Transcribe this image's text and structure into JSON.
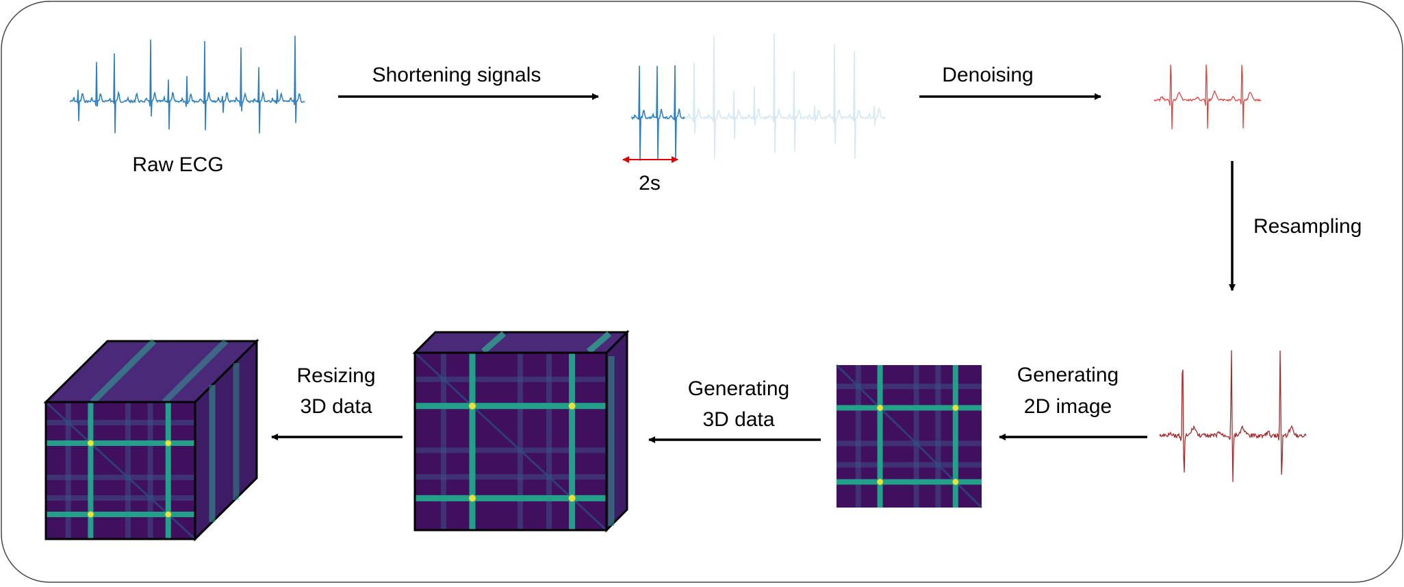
{
  "labels": {
    "raw_ecg": "Raw ECG",
    "shortening": "Shortening signals",
    "duration": "2s",
    "denoising": "Denoising",
    "resampling": "Resampling",
    "generating_2d_line1": "Generating",
    "generating_2d_line2": "2D image",
    "generating_3d_line1": "Generating",
    "generating_3d_line2": "3D data",
    "resizing_line1": "Resizing",
    "resizing_line2": "3D data"
  },
  "colors": {
    "raw_signal": "#2e7fbf",
    "faded_signal": "#d6e7f5",
    "denoised_signal": "#e8403c",
    "resampled_signal": "#a3292b",
    "duration_marker": "#e00000",
    "matrix_base": "#40105f",
    "matrix_band": "#23a08a",
    "matrix_peak": "#e8e23a"
  }
}
